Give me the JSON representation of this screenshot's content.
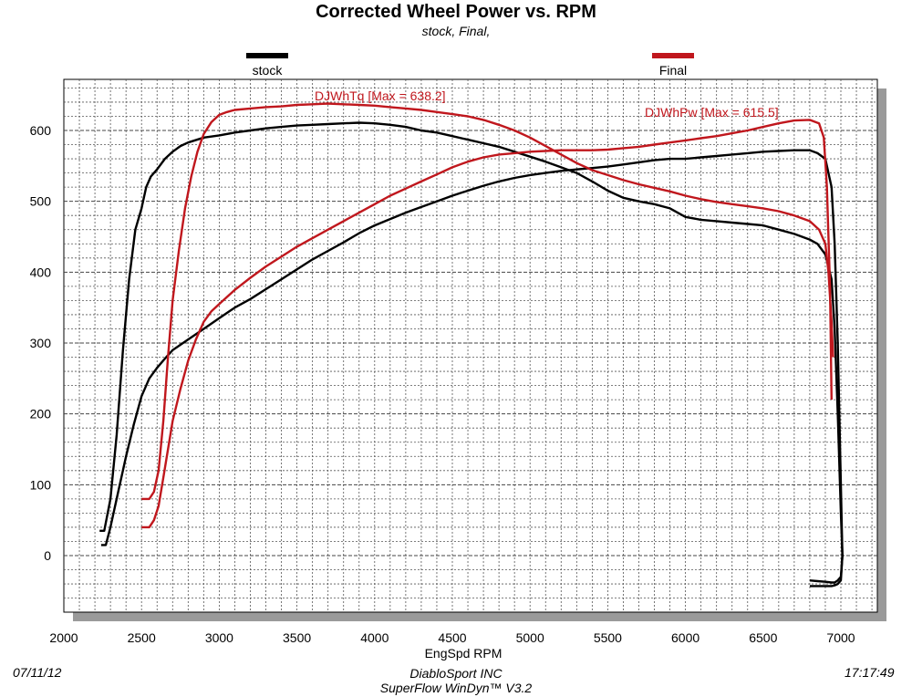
{
  "header": {
    "title": "Corrected Wheel Power vs. RPM",
    "subtitle": "stock, Final,"
  },
  "footer": {
    "date": "07/11/12",
    "company": "DiabloSport INC",
    "software": "SuperFlow WinDyn™ V3.2",
    "time": "17:17:49"
  },
  "colors": {
    "stock": "#000000",
    "final": "#c0171d",
    "grid": "#555555",
    "plot_shadow": "#9a9a9a"
  },
  "chart_data": {
    "type": "line",
    "title": "Corrected Wheel Power vs. RPM",
    "subtitle": "stock, Final,",
    "xlabel": "EngSpd RPM",
    "ylabel": "",
    "xlim": [
      2000,
      7000
    ],
    "ylim": [
      -80,
      670
    ],
    "x_ticks": [
      2000,
      2500,
      3000,
      3500,
      4000,
      4500,
      5000,
      5500,
      6000,
      6500,
      7000
    ],
    "y_ticks": [
      0,
      100,
      200,
      300,
      400,
      500,
      600
    ],
    "grid": true,
    "legend": [
      {
        "name": "stock",
        "color": "#000000"
      },
      {
        "name": "Final",
        "color": "#c0171d"
      }
    ],
    "annotations": [
      {
        "text": "DJWhTq [Max = 638.2]",
        "x": 3650,
        "y": 638.2
      },
      {
        "text": "DJWhPw [Max = 615.5]",
        "x": 6650,
        "y": 615.5
      }
    ],
    "series": [
      {
        "legend": "stock",
        "measure": "torque",
        "color": "#000000",
        "x": [
          2230,
          2260,
          2300,
          2340,
          2380,
          2420,
          2460,
          2500,
          2530,
          2560,
          2600,
          2650,
          2700,
          2750,
          2800,
          2900,
          3000,
          3100,
          3200,
          3300,
          3400,
          3500,
          3600,
          3700,
          3800,
          3900,
          4000,
          4100,
          4200,
          4300,
          4400,
          4500,
          4600,
          4700,
          4800,
          4900,
          5000,
          5100,
          5200,
          5300,
          5400,
          5500,
          5600,
          5700,
          5800,
          5900,
          6000,
          6100,
          6200,
          6300,
          6400,
          6500,
          6600,
          6700,
          6800,
          6850,
          6900,
          6940,
          6960,
          6980,
          7000,
          7010,
          7000,
          6980,
          6960,
          6940,
          6900,
          6850,
          6800
        ],
        "y": [
          35,
          35,
          80,
          170,
          290,
          390,
          460,
          490,
          520,
          535,
          545,
          560,
          570,
          578,
          583,
          590,
          593,
          597,
          600,
          603,
          605,
          607,
          608,
          609,
          610,
          611,
          610,
          608,
          605,
          600,
          597,
          592,
          587,
          582,
          577,
          570,
          563,
          556,
          548,
          540,
          528,
          515,
          505,
          500,
          496,
          490,
          478,
          474,
          472,
          470,
          468,
          466,
          460,
          454,
          446,
          440,
          425,
          390,
          320,
          200,
          60,
          0,
          -30,
          -35,
          -38,
          -38,
          -37,
          -36,
          -35
        ]
      },
      {
        "legend": "stock",
        "measure": "power",
        "color": "#000000",
        "x": [
          2240,
          2270,
          2300,
          2350,
          2400,
          2450,
          2500,
          2550,
          2600,
          2650,
          2700,
          2800,
          2900,
          3000,
          3100,
          3200,
          3300,
          3400,
          3500,
          3600,
          3700,
          3800,
          3900,
          4000,
          4100,
          4200,
          4300,
          4400,
          4500,
          4600,
          4700,
          4800,
          4900,
          5000,
          5100,
          5200,
          5300,
          5400,
          5500,
          5600,
          5700,
          5800,
          5900,
          6000,
          6100,
          6200,
          6300,
          6400,
          6500,
          6600,
          6700,
          6800,
          6850,
          6900,
          6940,
          6960,
          6980,
          7000,
          7010,
          7000,
          6980,
          6960,
          6940,
          6900,
          6850,
          6800
        ],
        "y": [
          15,
          15,
          40,
          90,
          140,
          185,
          225,
          250,
          265,
          278,
          290,
          305,
          320,
          335,
          350,
          362,
          376,
          390,
          404,
          418,
          430,
          442,
          455,
          466,
          475,
          484,
          492,
          500,
          508,
          515,
          522,
          528,
          533,
          537,
          540,
          543,
          545,
          547,
          549,
          552,
          555,
          558,
          560,
          560,
          562,
          564,
          566,
          568,
          570,
          571,
          572,
          572,
          568,
          560,
          520,
          440,
          300,
          100,
          0,
          -35,
          -40,
          -42,
          -43,
          -43,
          -43,
          -43
        ]
      },
      {
        "legend": "Final",
        "measure": "torque",
        "color": "#c0171d",
        "x": [
          2500,
          2550,
          2580,
          2610,
          2640,
          2670,
          2700,
          2740,
          2780,
          2820,
          2860,
          2900,
          2950,
          3000,
          3050,
          3100,
          3200,
          3300,
          3400,
          3500,
          3600,
          3700,
          3800,
          3900,
          4000,
          4100,
          4200,
          4300,
          4400,
          4500,
          4600,
          4700,
          4800,
          4900,
          5000,
          5100,
          5200,
          5300,
          5400,
          5500,
          5600,
          5700,
          5800,
          5900,
          6000,
          6100,
          6200,
          6300,
          6400,
          6500,
          6600,
          6700,
          6800,
          6860,
          6900,
          6920,
          6940,
          6950
        ],
        "y": [
          80,
          80,
          90,
          120,
          190,
          280,
          360,
          430,
          490,
          535,
          570,
          595,
          612,
          622,
          626,
          629,
          631,
          633,
          634,
          636,
          637,
          638,
          637,
          636,
          635,
          633,
          631,
          629,
          626,
          623,
          620,
          615,
          608,
          600,
          590,
          578,
          566,
          554,
          544,
          537,
          530,
          524,
          519,
          514,
          508,
          503,
          499,
          496,
          493,
          490,
          486,
          480,
          472,
          460,
          440,
          400,
          330,
          280
        ]
      },
      {
        "legend": "Final",
        "measure": "power",
        "color": "#c0171d",
        "x": [
          2500,
          2550,
          2580,
          2610,
          2640,
          2670,
          2700,
          2750,
          2800,
          2850,
          2900,
          2950,
          3000,
          3050,
          3100,
          3200,
          3300,
          3400,
          3500,
          3600,
          3700,
          3800,
          3900,
          4000,
          4100,
          4200,
          4300,
          4400,
          4500,
          4600,
          4700,
          4800,
          4900,
          5000,
          5100,
          5200,
          5300,
          5400,
          5500,
          5600,
          5700,
          5800,
          5900,
          6000,
          6100,
          6200,
          6300,
          6400,
          6500,
          6600,
          6700,
          6800,
          6860,
          6890,
          6910,
          6930,
          6940
        ],
        "y": [
          40,
          40,
          50,
          70,
          110,
          150,
          190,
          235,
          275,
          305,
          330,
          345,
          355,
          365,
          375,
          392,
          408,
          422,
          436,
          448,
          460,
          472,
          484,
          496,
          508,
          518,
          528,
          538,
          548,
          556,
          562,
          566,
          568,
          570,
          571,
          572,
          572,
          572,
          573,
          575,
          577,
          580,
          583,
          586,
          589,
          592,
          596,
          600,
          605,
          610,
          614,
          615,
          610,
          590,
          520,
          380,
          220
        ]
      }
    ]
  }
}
